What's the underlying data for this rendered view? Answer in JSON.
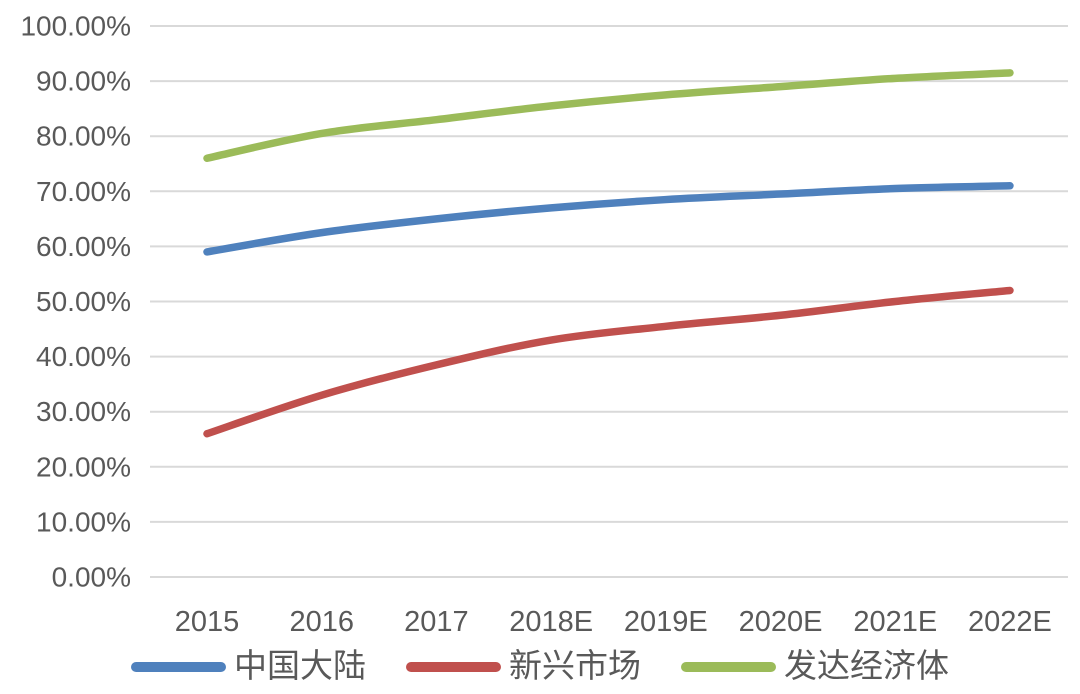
{
  "chart_data": {
    "type": "line",
    "title": "",
    "categories": [
      "2015",
      "2016",
      "2017",
      "2018E",
      "2019E",
      "2020E",
      "2021E",
      "2022E"
    ],
    "series": [
      {
        "id": "china-mainland",
        "name": "中国大陆",
        "color": "#4F81BD",
        "values": [
          59,
          62.5,
          65,
          67,
          68.5,
          69.5,
          70.5,
          71
        ]
      },
      {
        "id": "emerging-markets",
        "name": "新兴市场",
        "color": "#C0504D",
        "values": [
          26,
          33,
          38.5,
          43,
          45.5,
          47.5,
          50,
          52
        ]
      },
      {
        "id": "developed-economies",
        "name": "发达经济体",
        "color": "#9BBB59",
        "values": [
          76,
          80.5,
          83,
          85.5,
          87.5,
          89,
          90.5,
          91.5
        ]
      }
    ],
    "y_axis": {
      "min": 0,
      "max": 100,
      "step": 10,
      "tick_labels": [
        "100.00%",
        "90.00%",
        "80.00%",
        "70.00%",
        "60.00%",
        "50.00%",
        "40.00%",
        "30.00%",
        "20.00%",
        "10.00%",
        "0.00%"
      ]
    },
    "x_axis": {
      "tick_labels": [
        "2015",
        "2016",
        "2017",
        "2018E",
        "2019E",
        "2020E",
        "2021E",
        "2022E"
      ]
    },
    "grid": true,
    "legend_position": "bottom",
    "line_style": "smooth",
    "colors": {
      "grid": "#D9D9D9",
      "axis_text": "#595959",
      "background": "#FFFFFF"
    }
  }
}
